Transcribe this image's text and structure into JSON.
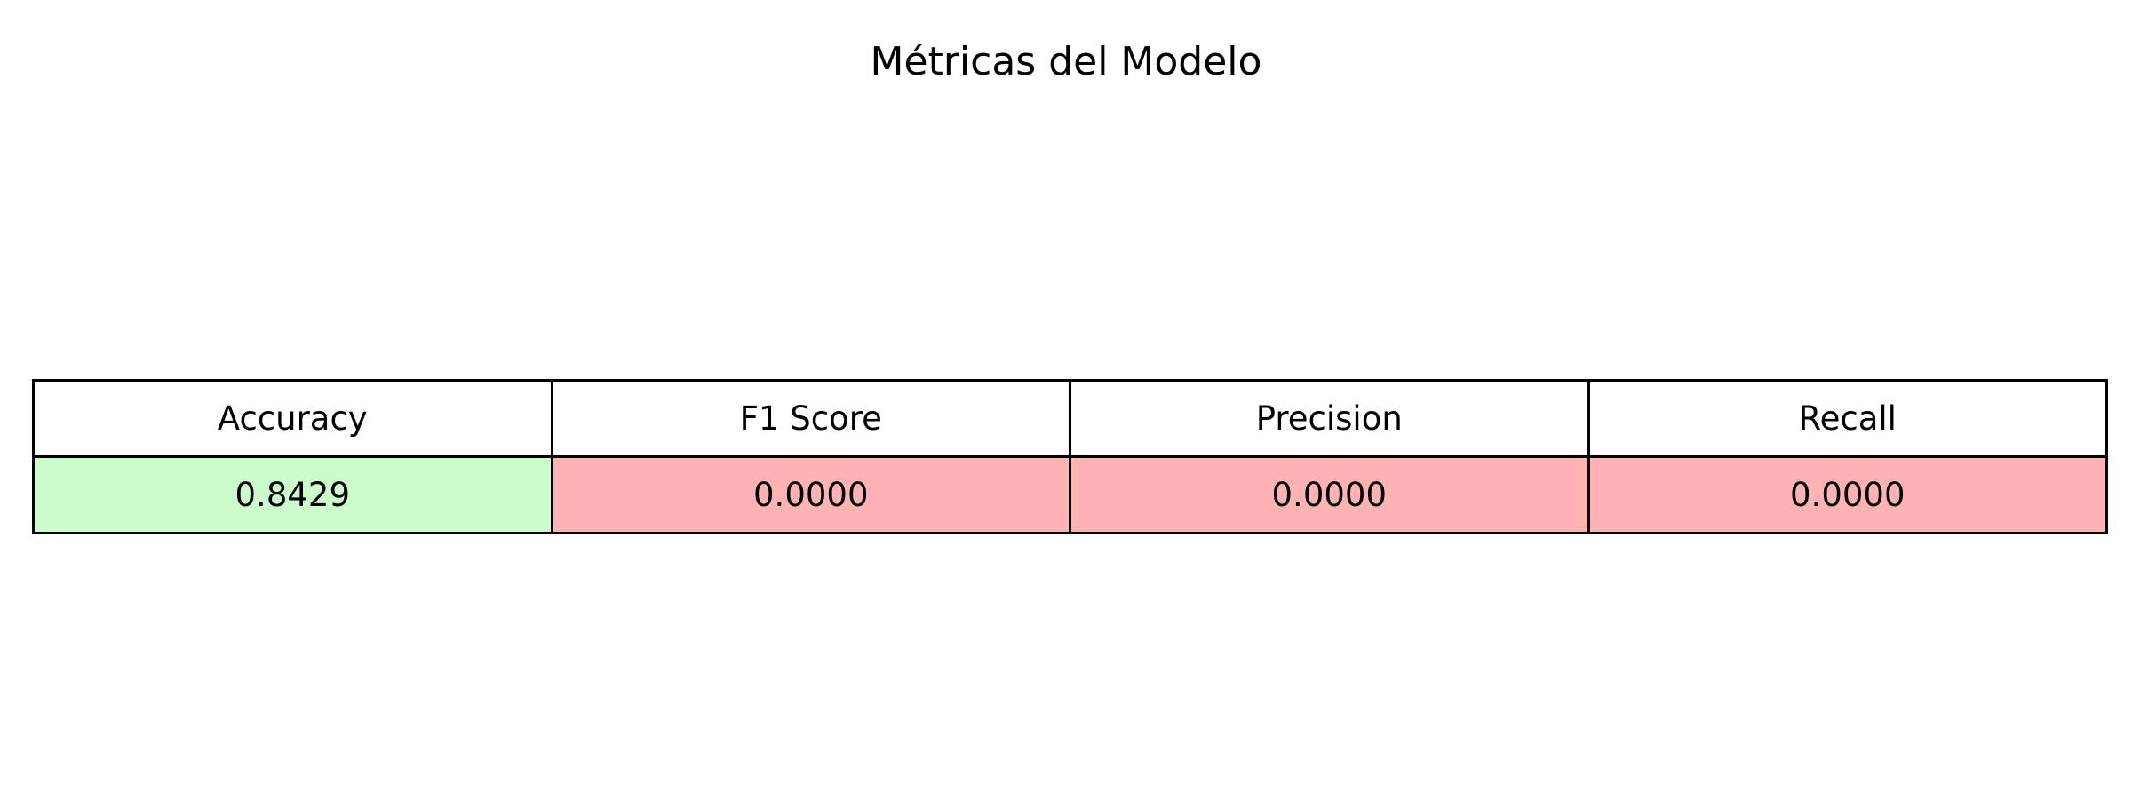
{
  "chart_data": {
    "type": "table",
    "title": "Métricas del Modelo",
    "columns": [
      "Accuracy",
      "F1 Score",
      "Precision",
      "Recall"
    ],
    "rows": [
      [
        "0.8429",
        "0.0000",
        "0.0000",
        "0.0000"
      ]
    ],
    "values": [
      0.8429,
      0.0,
      0.0,
      0.0
    ],
    "cell_colors": [
      "#ccfccc",
      "#ffb3b3",
      "#ffb3b3",
      "#ffb3b3"
    ],
    "header_color": "#ffffff",
    "border_color": "#000000"
  }
}
